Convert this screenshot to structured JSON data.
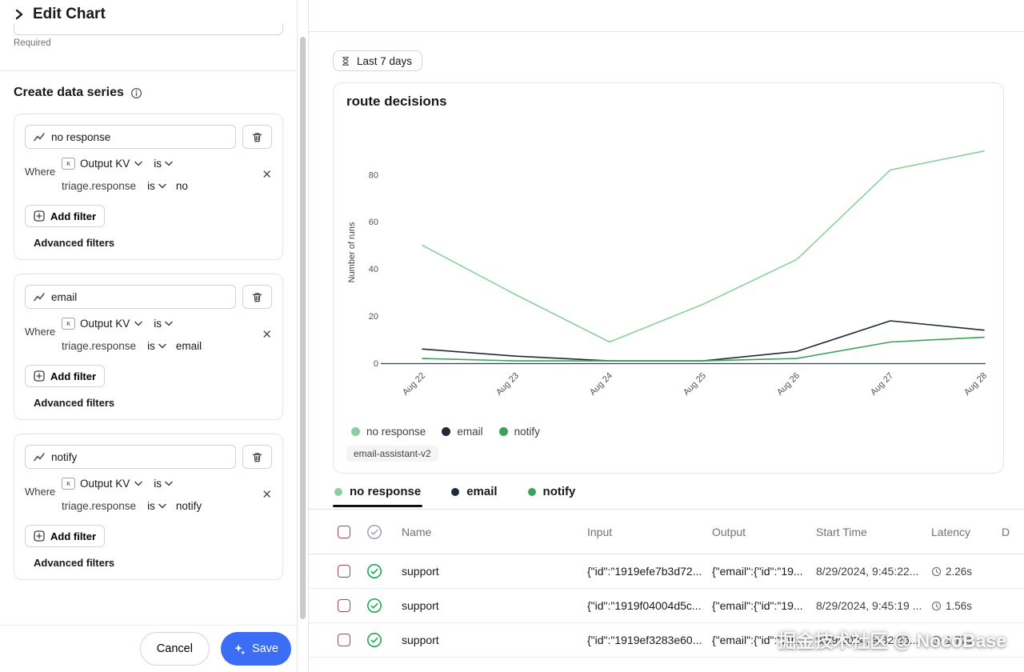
{
  "colors": {
    "accent_blue": "#3b6ef5",
    "status_green": "#16a34a",
    "checkbox_red": "#9b4d4d"
  },
  "panel": {
    "title": "Edit Chart",
    "required_label": "Required",
    "section_title": "Create data series",
    "where_label": "Where",
    "cards": [
      {
        "name": "no response",
        "kv_field": "Output KV",
        "op": "is",
        "filter": {
          "field": "triage.response",
          "op": "is",
          "value": "no"
        },
        "add_filter": "Add filter",
        "advanced": "Advanced filters"
      },
      {
        "name": "email",
        "kv_field": "Output KV",
        "op": "is",
        "filter": {
          "field": "triage.response",
          "op": "is",
          "value": "email"
        },
        "add_filter": "Add filter",
        "advanced": "Advanced filters"
      },
      {
        "name": "notify",
        "kv_field": "Output KV",
        "op": "is",
        "filter": {
          "field": "triage.response",
          "op": "is",
          "value": "notify"
        },
        "add_filter": "Add filter",
        "advanced": "Advanced filters"
      }
    ],
    "footer": {
      "cancel": "Cancel",
      "save": "Save"
    }
  },
  "main": {
    "time_range": "Last 7 days",
    "tag": "email-assistant-v2",
    "tabs": [
      {
        "label": "no response",
        "color": "#8bcf9e",
        "active": true
      },
      {
        "label": "email",
        "color": "#1f2937",
        "active": false
      },
      {
        "label": "notify",
        "color": "#3ca257",
        "active": false
      }
    ],
    "table": {
      "columns": [
        "Name",
        "Input",
        "Output",
        "Start Time",
        "Latency"
      ],
      "clipped_column": "D",
      "rows": [
        {
          "name": "support",
          "input": "{\"id\":\"1919efe7b3d72...",
          "output": "{\"email\":{\"id\":\"19...",
          "start": "8/29/2024, 9:45:22...",
          "latency": "2.26s"
        },
        {
          "name": "support",
          "input": "{\"id\":\"1919f04004d5c...",
          "output": "{\"email\":{\"id\":\"19...",
          "start": "8/29/2024, 9:45:19 ...",
          "latency": "1.56s"
        },
        {
          "name": "support",
          "input": "{\"id\":\"1919ef3283e60...",
          "output": "{\"email\":{\"id\":\"19...",
          "start": "8/29/2024, 9:32:26...",
          "latency": "1.77s"
        }
      ]
    },
    "watermark": "掘金技术社区 @ NocoBase"
  },
  "chart_data": {
    "type": "line",
    "title": "route decisions",
    "ylabel": "Number of runs",
    "x": [
      "Aug 22",
      "Aug 23",
      "Aug 24",
      "Aug 25",
      "Aug 26",
      "Aug 27",
      "Aug 28"
    ],
    "yticks": [
      0,
      20,
      40,
      60,
      80
    ],
    "ylim": [
      0,
      94
    ],
    "grid": false,
    "legend_position": "bottom-left",
    "series": [
      {
        "name": "no response",
        "color": "#8bcf9e",
        "values": [
          50,
          29,
          9,
          25,
          44,
          82,
          90
        ]
      },
      {
        "name": "email",
        "color": "#1f2937",
        "values": [
          6,
          3,
          1,
          1,
          5,
          18,
          14
        ]
      },
      {
        "name": "notify",
        "color": "#3ca257",
        "values": [
          2,
          1,
          1,
          1,
          2,
          9,
          11
        ]
      }
    ]
  }
}
